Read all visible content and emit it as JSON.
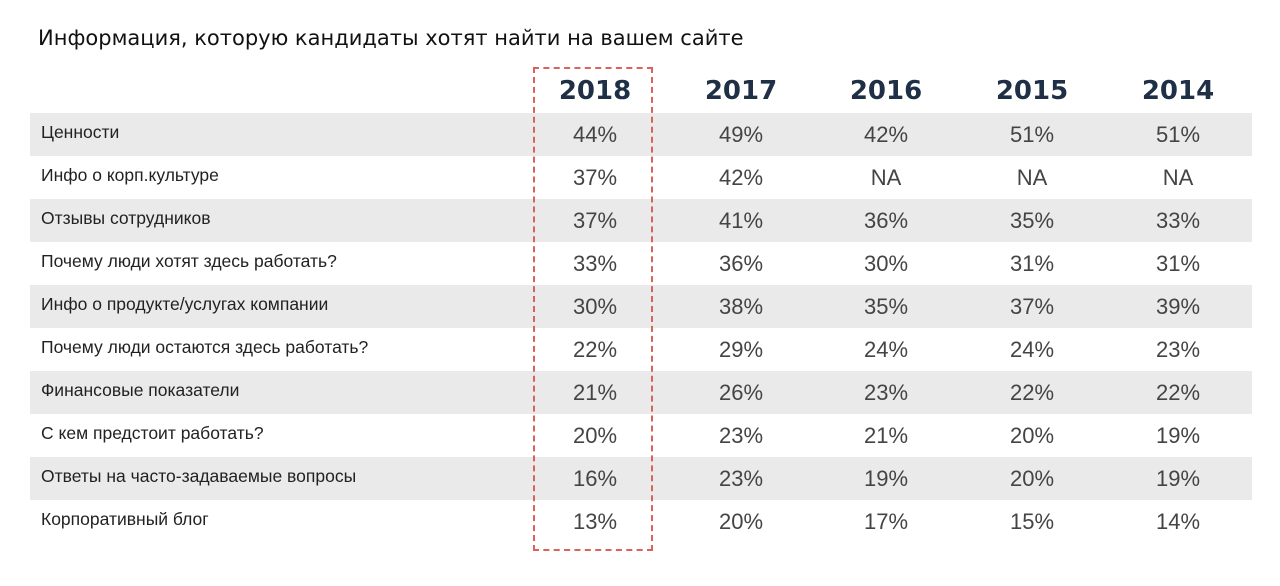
{
  "title": "Информация, которую кандидаты хотят найти на вашем сайте",
  "accent_color": "#d9635c",
  "header_color": "#1f2f45",
  "chart_data": {
    "type": "table",
    "title": "Информация, которую кандидаты хотят найти на вашем сайте",
    "columns": [
      "2018",
      "2017",
      "2016",
      "2015",
      "2014"
    ],
    "highlighted_column": "2018",
    "rows": [
      {
        "label": "Ценности",
        "values": [
          "44%",
          "49%",
          "42%",
          "51%",
          "51%"
        ]
      },
      {
        "label": "Инфо о корп.культуре",
        "values": [
          "37%",
          "42%",
          "NA",
          "NA",
          "NA"
        ]
      },
      {
        "label": "Отзывы сотрудников",
        "values": [
          "37%",
          "41%",
          "36%",
          "35%",
          "33%"
        ]
      },
      {
        "label": "Почему люди хотят здесь работать?",
        "values": [
          "33%",
          "36%",
          "30%",
          "31%",
          "31%"
        ]
      },
      {
        "label": "Инфо о продукте/услугах компании",
        "values": [
          "30%",
          "38%",
          "35%",
          "37%",
          "39%"
        ]
      },
      {
        "label": "Почему люди остаются здесь работать?",
        "values": [
          "22%",
          "29%",
          "24%",
          "24%",
          "23%"
        ]
      },
      {
        "label": "Финансовые показатели",
        "values": [
          "21%",
          "26%",
          "23%",
          "22%",
          "22%"
        ]
      },
      {
        "label": "С кем предстоит работать?",
        "values": [
          "20%",
          "23%",
          "21%",
          "20%",
          "19%"
        ]
      },
      {
        "label": "Ответы на часто-задаваемые вопросы",
        "values": [
          "16%",
          "23%",
          "19%",
          "20%",
          "19%"
        ]
      },
      {
        "label": "Корпоративный блог",
        "values": [
          "13%",
          "20%",
          "17%",
          "15%",
          "14%"
        ]
      }
    ]
  }
}
